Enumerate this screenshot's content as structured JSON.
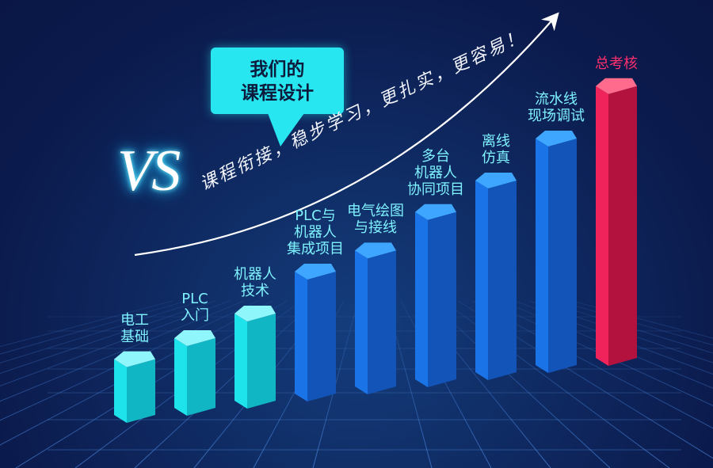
{
  "bubble": {
    "text": "我们的\n课程设计"
  },
  "vs_text": "VS",
  "slogan": "课程衔接，稳步学习，更扎实，更容易！",
  "colors": {
    "bar_cyan": "#1fe3ea",
    "bar_blue": "#1a74e8",
    "bar_red": "#f0245a",
    "label_cyan": "#7ff2ff",
    "label_red": "#ff2f6d",
    "bubble": "#27e6f0"
  },
  "chart_data": {
    "type": "bar",
    "title": "",
    "xlabel": "",
    "ylabel": "",
    "categories": [
      "电工\n基础",
      "PLC\n入门",
      "机器人\n技术",
      "PLC与\n机器人\n集成项目",
      "电气绘图\n与接线",
      "多台\n机器人\n协同项目",
      "离线\n仿真",
      "流水线\n现场调试",
      "总考核"
    ],
    "values": [
      1.6,
      2.0,
      2.5,
      3.5,
      3.9,
      4.8,
      5.5,
      6.5,
      7.8
    ],
    "value_scale": "unlabeled relative heights",
    "grid": true,
    "bar_colors": [
      "cyan",
      "cyan",
      "cyan",
      "blue",
      "blue",
      "blue",
      "blue",
      "blue",
      "red"
    ]
  }
}
